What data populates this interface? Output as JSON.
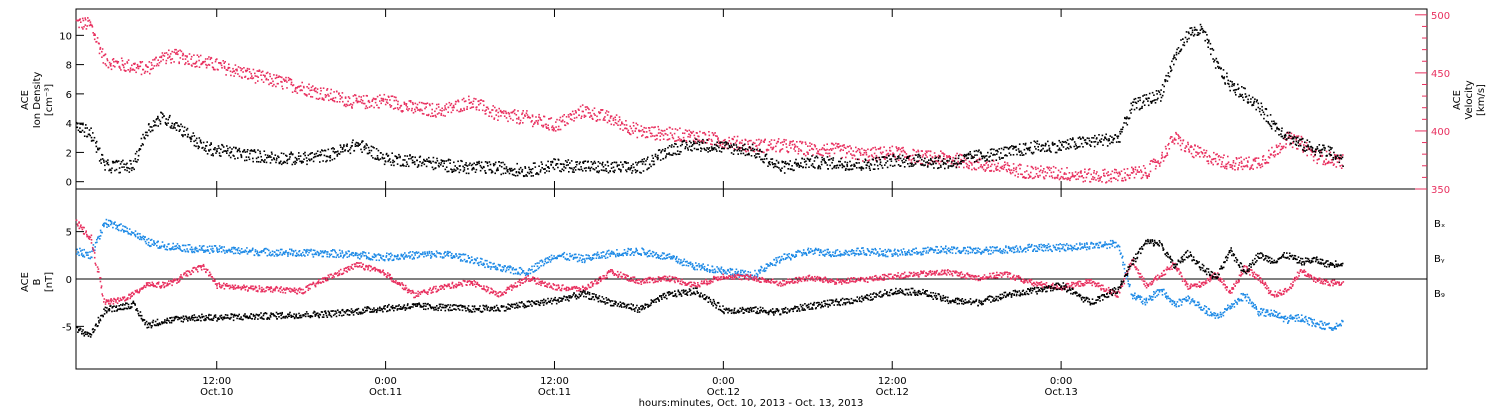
{
  "chart_data": [
    {
      "type": "scatter",
      "panel": "top",
      "ylabel_left": [
        "ACE",
        "Ion Density",
        "[cm⁻³]"
      ],
      "ylabel_right": [
        "ACE",
        "Velocity",
        "[km/s]"
      ],
      "ylim_left": [
        -0.5,
        11.8
      ],
      "ylim_right": [
        350,
        505
      ],
      "yticks_left": [
        0,
        2,
        4,
        6,
        8,
        10
      ],
      "yticks_right": [
        350,
        400,
        450,
        500
      ],
      "series": [
        {
          "axis": "left",
          "color": "#000000",
          "x": [
            0,
            1,
            2,
            3,
            4,
            5,
            6,
            7,
            8,
            9,
            10,
            12,
            14,
            16,
            18,
            20,
            22,
            24,
            26,
            28,
            30,
            32,
            34,
            36,
            38,
            40,
            42,
            44,
            46,
            48,
            50,
            52,
            54,
            56,
            58,
            60,
            62,
            64,
            66,
            68,
            70,
            72,
            74,
            75,
            76,
            77,
            78,
            79,
            80,
            81,
            82,
            83,
            84,
            85,
            86,
            87,
            88,
            89,
            90
          ],
          "y": [
            3.8,
            3.4,
            1.1,
            1.1,
            1.1,
            3.6,
            4.4,
            4.0,
            3.2,
            2.4,
            2.2,
            1.9,
            1.7,
            1.6,
            1.9,
            2.6,
            1.6,
            1.5,
            1.2,
            1.0,
            1.0,
            0.8,
            1.2,
            1.1,
            1.0,
            1.0,
            2.2,
            2.6,
            2.4,
            2.2,
            1.0,
            1.4,
            1.3,
            1.2,
            1.5,
            1.5,
            1.3,
            1.8,
            2.0,
            2.4,
            2.5,
            2.8,
            3.0,
            5.2,
            5.6,
            6.0,
            8.5,
            10.2,
            10.4,
            8.0,
            6.6,
            6.0,
            5.2,
            4.0,
            3.2,
            2.6,
            2.3,
            2.1,
            1.4
          ]
        },
        {
          "axis": "right",
          "color": "#e8305f",
          "x": [
            0,
            1,
            2,
            3,
            4,
            5,
            6,
            7,
            8,
            9,
            10,
            12,
            14,
            16,
            18,
            20,
            22,
            24,
            26,
            28,
            30,
            32,
            34,
            36,
            38,
            40,
            42,
            44,
            46,
            48,
            50,
            52,
            54,
            56,
            58,
            60,
            62,
            64,
            66,
            68,
            70,
            72,
            74,
            75,
            76,
            77,
            78,
            79,
            80,
            81,
            82,
            83,
            84,
            85,
            86,
            87,
            88,
            89,
            90
          ],
          "y": [
            494,
            492,
            461,
            458,
            456,
            454,
            464,
            465,
            463,
            460,
            457,
            450,
            444,
            438,
            431,
            425,
            427,
            420,
            418,
            426,
            414,
            412,
            405,
            418,
            411,
            400,
            398,
            396,
            392,
            388,
            388,
            385,
            384,
            380,
            382,
            378,
            377,
            372,
            368,
            365,
            364,
            362,
            362,
            364,
            365,
            376,
            395,
            385,
            380,
            376,
            373,
            372,
            374,
            381,
            394,
            390,
            379,
            377,
            374
          ]
        }
      ]
    },
    {
      "type": "scatter",
      "panel": "bottom",
      "ylabel": [
        "ACE",
        "B",
        "[nT]"
      ],
      "ylim": [
        -9.5,
        9.5
      ],
      "yticks": [
        -5,
        0,
        5
      ],
      "legend_placement": "right",
      "series": [
        {
          "name": "Bₓ",
          "color": "#000000",
          "x": [
            0,
            1,
            2,
            3,
            4,
            5,
            6,
            7,
            8,
            9,
            10,
            12,
            14,
            16,
            18,
            20,
            22,
            24,
            26,
            28,
            30,
            32,
            34,
            36,
            38,
            40,
            42,
            44,
            46,
            48,
            50,
            52,
            54,
            56,
            58,
            60,
            62,
            64,
            66,
            68,
            70,
            72,
            74,
            75,
            76,
            77,
            78,
            79,
            80,
            81,
            82,
            83,
            84,
            85,
            86,
            87,
            88,
            89,
            90
          ],
          "y": [
            -5.3,
            -5.8,
            -3.2,
            -2.9,
            -2.6,
            -4.8,
            -4.4,
            -4.2,
            -4.0,
            -4.0,
            -4.0,
            -3.9,
            -3.8,
            -3.7,
            -3.6,
            -3.3,
            -3.0,
            -2.8,
            -2.9,
            -3.1,
            -3.0,
            -2.6,
            -2.2,
            -1.5,
            -2.4,
            -3.1,
            -1.6,
            -1.2,
            -3.2,
            -3.2,
            -3.4,
            -2.8,
            -2.4,
            -2.0,
            -1.2,
            -1.3,
            -2.2,
            -2.4,
            -1.6,
            -1.2,
            -0.6,
            -2.4,
            -1.0,
            1.8,
            4.0,
            3.8,
            1.4,
            2.8,
            1.2,
            0.2,
            3.0,
            0.8,
            2.6,
            2.0,
            2.6,
            1.9,
            2.1,
            1.6,
            1.8
          ]
        },
        {
          "name": "Bᵧ",
          "color": "#1e8ae6",
          "x": [
            0,
            1,
            2,
            3,
            4,
            5,
            6,
            7,
            8,
            9,
            10,
            12,
            14,
            16,
            18,
            20,
            22,
            24,
            26,
            28,
            30,
            32,
            34,
            36,
            38,
            40,
            42,
            44,
            46,
            48,
            50,
            52,
            54,
            56,
            58,
            60,
            62,
            64,
            66,
            68,
            70,
            72,
            74,
            75,
            76,
            77,
            78,
            79,
            80,
            81,
            82,
            83,
            84,
            85,
            86,
            87,
            88,
            89,
            90
          ],
          "y": [
            3.0,
            2.6,
            6.0,
            5.6,
            5.0,
            4.0,
            3.6,
            3.5,
            3.3,
            3.2,
            3.2,
            3.0,
            2.9,
            2.8,
            2.8,
            2.6,
            2.4,
            2.6,
            2.7,
            2.2,
            1.2,
            0.8,
            2.6,
            2.2,
            2.8,
            3.0,
            2.4,
            1.4,
            1.0,
            0.4,
            2.2,
            3.0,
            2.8,
            3.0,
            2.8,
            3.0,
            3.2,
            3.0,
            3.2,
            3.4,
            3.4,
            3.6,
            3.8,
            -1.6,
            -2.4,
            -1.0,
            -2.6,
            -2.0,
            -3.0,
            -4.0,
            -2.8,
            -1.6,
            -3.4,
            -3.6,
            -4.2,
            -4.0,
            -4.6,
            -5.0,
            -4.6
          ]
        },
        {
          "name": "B₉",
          "color": "#e8305f",
          "x": [
            0,
            1,
            2,
            3,
            4,
            5,
            6,
            7,
            8,
            9,
            10,
            12,
            14,
            16,
            18,
            20,
            22,
            24,
            26,
            28,
            30,
            32,
            34,
            36,
            38,
            40,
            42,
            44,
            46,
            48,
            50,
            52,
            54,
            56,
            58,
            60,
            62,
            64,
            66,
            68,
            70,
            72,
            74,
            75,
            76,
            77,
            78,
            79,
            80,
            81,
            82,
            83,
            84,
            85,
            86,
            87,
            88,
            89,
            90
          ],
          "y": [
            6.0,
            4.4,
            -2.4,
            -2.2,
            -1.6,
            -0.4,
            -0.6,
            -0.2,
            0.8,
            1.4,
            -0.6,
            -0.9,
            -1.0,
            -1.2,
            0.3,
            1.6,
            0.6,
            -1.6,
            -0.8,
            -0.2,
            -1.6,
            0.2,
            -0.8,
            -1.0,
            0.8,
            -0.2,
            0.2,
            -0.6,
            0.4,
            0.2,
            -0.4,
            0.2,
            -0.2,
            0.0,
            0.4,
            0.6,
            0.8,
            0.2,
            0.6,
            -0.4,
            -0.8,
            -0.2,
            -1.6,
            2.0,
            -0.6,
            0.4,
            1.6,
            -0.8,
            -0.4,
            0.6,
            -1.4,
            1.2,
            0.2,
            -1.6,
            -1.2,
            1.0,
            0.0,
            -0.4,
            -0.2
          ]
        }
      ]
    }
  ],
  "x_axis": {
    "range_hours": [
      0,
      96
    ],
    "ticks": [
      {
        "hours": 10,
        "time": "12:00",
        "date": "Oct.10"
      },
      {
        "hours": 22,
        "time": "0:00",
        "date": "Oct.11"
      },
      {
        "hours": 34,
        "time": "12:00",
        "date": "Oct.11"
      },
      {
        "hours": 46,
        "time": "0:00",
        "date": "Oct.12"
      },
      {
        "hours": 58,
        "time": "12:00",
        "date": "Oct.12"
      },
      {
        "hours": 70,
        "time": "0:00",
        "date": "Oct.13"
      }
    ],
    "title": "hours:minutes, Oct. 10, 2013 - Oct. 13, 2013"
  },
  "colors": {
    "black": "#000000",
    "pink": "#e8305f",
    "blue": "#1e8ae6",
    "frame": "#000000"
  }
}
